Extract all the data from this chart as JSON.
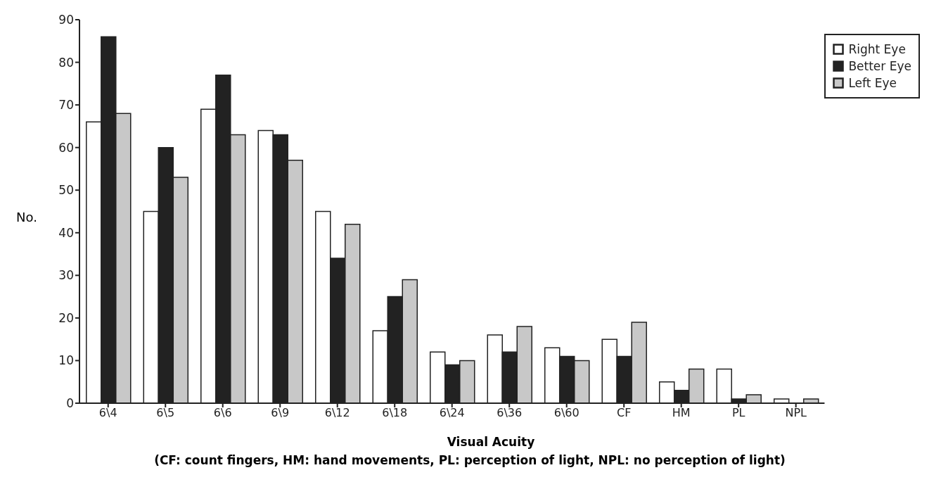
{
  "chart_data": {
    "type": "bar",
    "xlabel": "Visual Acuity",
    "ylabel": "No.",
    "annotations": [
      "(CF: count fingers, HM: hand movements, PL: perception of light, NPL: no perception of light)"
    ],
    "categories": [
      "6\\4",
      "6\\5",
      "6\\6",
      "6\\9",
      "6\\12",
      "6\\18",
      "6\\24",
      "6\\36",
      "6\\60",
      "CF",
      "HM",
      "PL",
      "NPL"
    ],
    "series": [
      {
        "name": "Right Eye",
        "color": "#ffffff",
        "values": [
          66,
          45,
          69,
          64,
          45,
          17,
          12,
          16,
          13,
          15,
          5,
          8,
          1
        ]
      },
      {
        "name": "Better Eye",
        "color": "#222222",
        "values": [
          86,
          60,
          77,
          63,
          34,
          25,
          9,
          12,
          11,
          11,
          3,
          1,
          0
        ]
      },
      {
        "name": "Left Eye",
        "color": "#c8c8c8",
        "values": [
          68,
          53,
          63,
          57,
          42,
          29,
          10,
          18,
          10,
          19,
          8,
          2,
          1
        ]
      }
    ],
    "ylim": [
      0,
      90
    ],
    "yticks": [
      0,
      10,
      20,
      30,
      40,
      50,
      60,
      70,
      80,
      90
    ],
    "grid": false,
    "legend": "top right"
  }
}
